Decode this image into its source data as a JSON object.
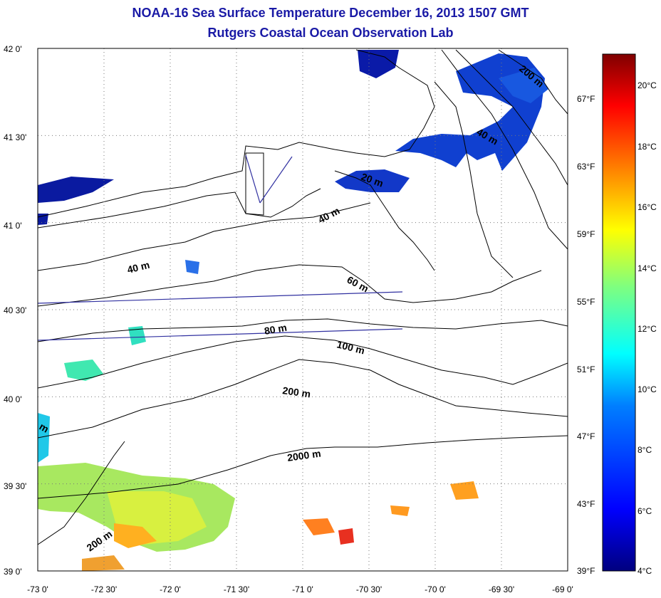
{
  "title_line1": "NOAA-16 Sea Surface Temperature December 16, 2013 1507 GMT",
  "title_line2": "Rutgers Coastal Ocean Observation Lab",
  "map": {
    "lon_labels": [
      "-73 0'",
      "-72 30'",
      "-72 0'",
      "-71 30'",
      "-71 0'",
      "-70 30'",
      "-70 0'",
      "-69 30'",
      "-69 0'"
    ],
    "lat_labels": [
      "42 0'",
      "41 30'",
      "41 0'",
      "40 30'",
      "40 0'",
      "39 30'",
      "39 0'"
    ],
    "fahrenheit_labels": [
      "67°F",
      "63°F",
      "59°F",
      "55°F",
      "51°F",
      "47°F",
      "43°F",
      "39°F"
    ],
    "contour_labels": [
      "200 m",
      "40 m",
      "20 m",
      "40 m",
      "40 m",
      "60 m",
      "80 m",
      "100 m",
      "200 m",
      "2000 m",
      "200 m",
      "m"
    ]
  },
  "colorbar": {
    "labels": [
      "20°C",
      "18°C",
      "16°C",
      "14°C",
      "12°C",
      "10°C",
      "8°C",
      "6°C",
      "4°C"
    ],
    "range_c": [
      4,
      21
    ],
    "colors": [
      "#00007f",
      "#0000ff",
      "#007fff",
      "#00ffff",
      "#7fff7f",
      "#ffff00",
      "#ff7f00",
      "#ff0000",
      "#7f0000"
    ]
  },
  "colors": {
    "title": "#1a1aa6",
    "frame": "#000000",
    "grid": "#777777",
    "contour": "#000000",
    "track_line": "#3030a0"
  }
}
